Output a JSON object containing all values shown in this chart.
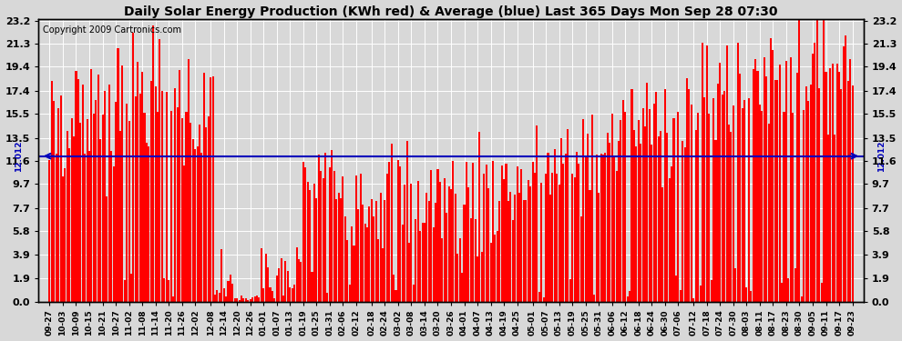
{
  "title": "Daily Solar Energy Production (KWh red) & Average (blue) Last 365 Days Mon Sep 28 07:30",
  "copyright": "Copyright 2009 Cartronics.com",
  "average_value": 12.012,
  "average_label": "12.012",
  "yticks": [
    0.0,
    1.9,
    3.9,
    5.8,
    7.7,
    9.7,
    11.6,
    13.5,
    15.5,
    17.4,
    19.4,
    21.3,
    23.2
  ],
  "ymax": 23.2,
  "ymin": 0.0,
  "bar_color": "#ff0000",
  "avg_line_color": "#0000bb",
  "background_color": "#d8d8d8",
  "grid_color": "#ffffff",
  "title_fontsize": 10,
  "copyright_fontsize": 7,
  "x_labels": [
    "09-27",
    "10-03",
    "10-09",
    "10-15",
    "10-21",
    "10-27",
    "11-02",
    "11-08",
    "11-14",
    "11-20",
    "11-26",
    "12-02",
    "12-08",
    "12-14",
    "12-20",
    "12-26",
    "01-01",
    "01-07",
    "01-13",
    "01-19",
    "01-25",
    "01-31",
    "02-06",
    "02-12",
    "02-18",
    "02-24",
    "03-02",
    "03-08",
    "03-14",
    "03-20",
    "03-26",
    "04-01",
    "04-07",
    "04-13",
    "04-19",
    "04-25",
    "05-01",
    "05-07",
    "05-13",
    "05-19",
    "05-25",
    "05-31",
    "06-06",
    "06-12",
    "06-18",
    "06-24",
    "06-30",
    "07-06",
    "07-12",
    "07-18",
    "07-24",
    "07-30",
    "08-03",
    "08-11",
    "08-17",
    "08-23",
    "08-30",
    "09-05",
    "09-11",
    "09-17",
    "09-23"
  ]
}
